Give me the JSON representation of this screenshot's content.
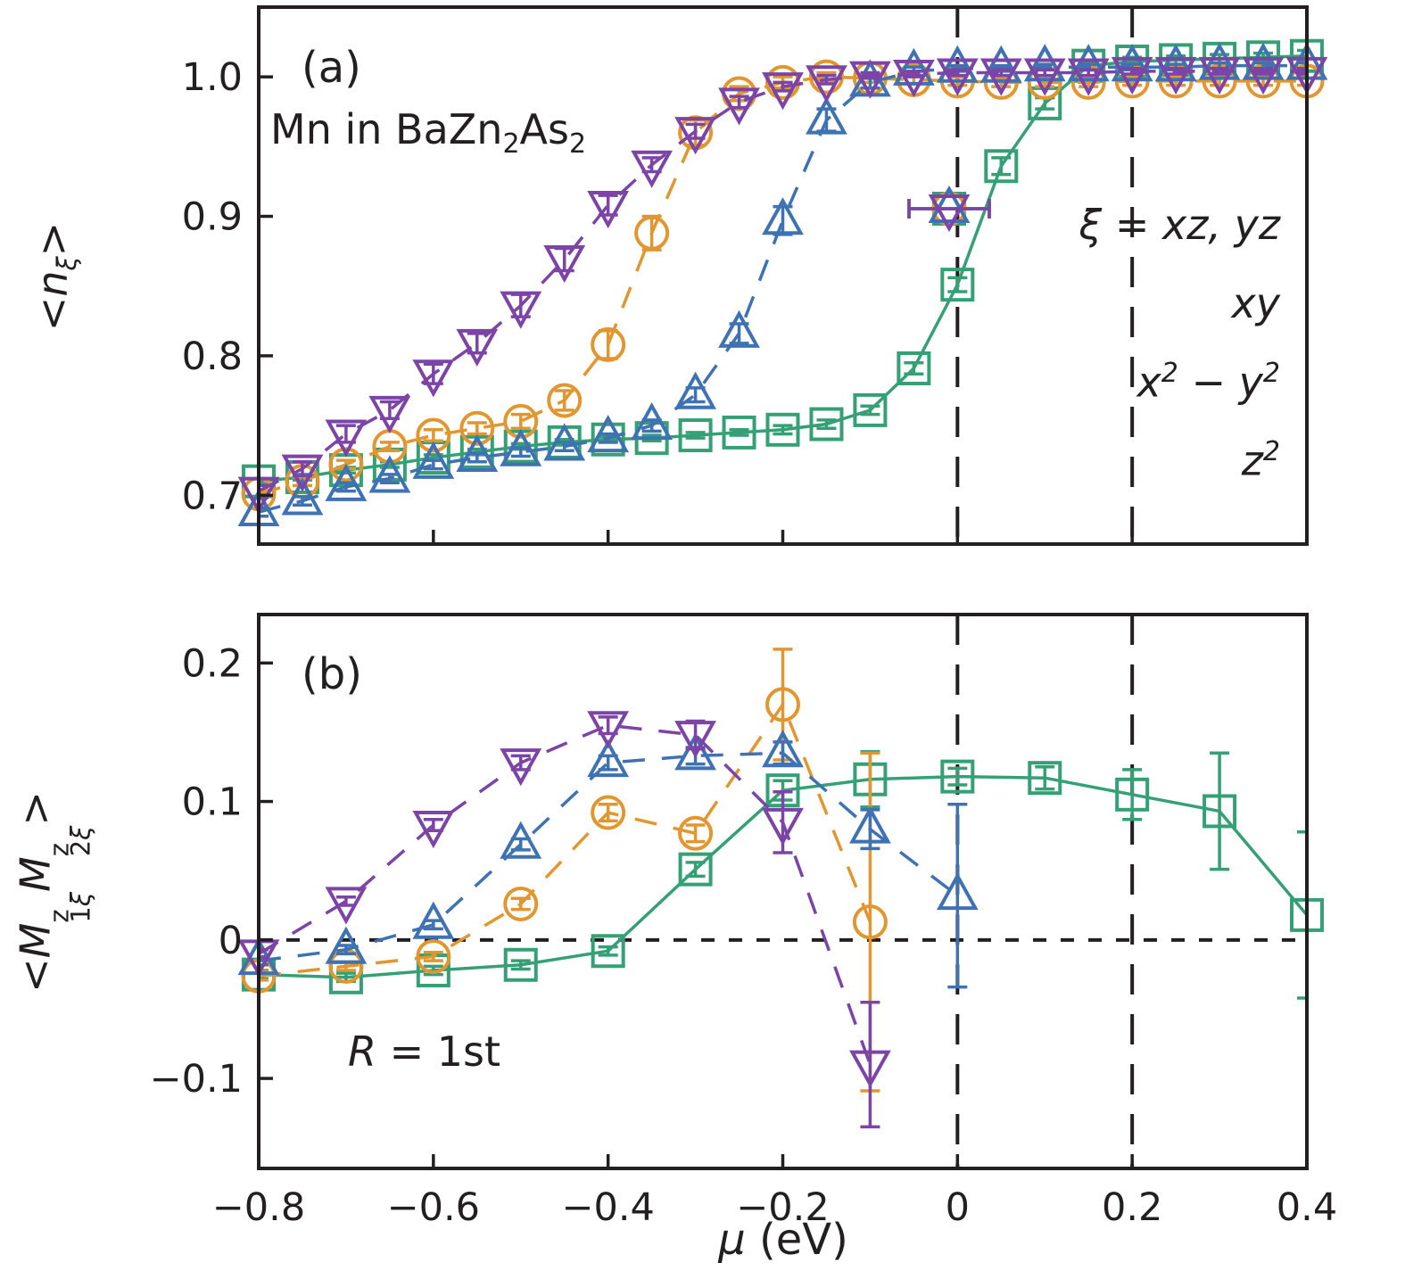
{
  "figure": {
    "panel_a_label": "(a)",
    "panel_a_annotation_html": "Mn in BaZn<sub>2</sub>As<sub>2</sub>",
    "panel_b_label": "(b)",
    "panel_b_annotation_html": "<i>R</i> = 1st",
    "xlabel_html": "<i>μ</i> (eV)",
    "ylabel_a_html": "&lt;<i>n</i><sub><i>ξ</i></sub>&gt;",
    "ylabel_b_html": "&lt;<i>M</i><span class=\"ss\"><span class=\"sup\">z</span><span class=\"sub\">1<i>ξ</i></span></span><i>M</i><span class=\"ss\"><span class=\"sup\">z</span><span class=\"sub\">2<i>ξ</i></span></span>&gt;"
  },
  "legend": {
    "items": [
      {
        "name": "xz_yz",
        "label_html": "<i>ξ</i> = <i>xz</i>, <i>yz</i>"
      },
      {
        "name": "xy",
        "label_html": "<i>xy</i>"
      },
      {
        "name": "x2_y2",
        "label_html": "<i>x</i><sup>2</sup> − <i>y</i><sup>2</sup>"
      },
      {
        "name": "z2",
        "label_html": "<i>z</i><sup>2</sup>"
      }
    ]
  },
  "colors": {
    "green": "#35a075",
    "orange": "#e2962f",
    "blue": "#3e72b2",
    "purple": "#7b44a6",
    "frame": "#231f20"
  },
  "chart_data": [
    {
      "panel": "a",
      "type": "line",
      "title": "",
      "xlabel": "",
      "ylabel": "<n_xi>",
      "xlim": [
        -0.8,
        0.4
      ],
      "ylim": [
        0.665,
        1.05
      ],
      "yticks": [
        0.7,
        0.8,
        0.9,
        1.0
      ],
      "yticklabels": [
        "0.7",
        "0.8",
        "0.9",
        "1.0"
      ],
      "xticks": [
        -0.8,
        -0.6,
        -0.4,
        -0.2,
        0,
        0.2,
        0.4
      ],
      "xticklabels": [],
      "vlines": [
        0,
        0.2
      ],
      "hline": null,
      "grid": false,
      "x": [
        -0.8,
        -0.75,
        -0.7,
        -0.65,
        -0.6,
        -0.55,
        -0.5,
        -0.45,
        -0.4,
        -0.35,
        -0.3,
        -0.25,
        -0.2,
        -0.15,
        -0.1,
        -0.05,
        0.0,
        0.05,
        0.1,
        0.15,
        0.2,
        0.25,
        0.3,
        0.35,
        0.4
      ],
      "series": [
        {
          "name": "xz_yz",
          "color": "green",
          "marker": "square",
          "line": "solid",
          "values": [
            0.71,
            0.713,
            0.718,
            0.722,
            0.727,
            0.731,
            0.735,
            0.738,
            0.74,
            0.741,
            0.743,
            0.745,
            0.747,
            0.751,
            0.761,
            0.791,
            0.851,
            0.936,
            0.981,
            1.008,
            1.011,
            1.012,
            1.013,
            1.014,
            1.015
          ],
          "err": [
            0.002,
            0.002,
            0.002,
            0.002,
            0.002,
            0.002,
            0.002,
            0.002,
            0.002,
            0.002,
            0.002,
            0.002,
            0.003,
            0.003,
            0.003,
            0.004,
            0.005,
            0.006,
            0.004,
            0.003,
            0.003,
            0.003,
            0.003,
            0.003,
            0.004
          ]
        },
        {
          "name": "xy",
          "color": "orange",
          "marker": "circle",
          "line": "dashed",
          "values": [
            0.701,
            0.71,
            0.722,
            0.735,
            0.743,
            0.748,
            0.753,
            0.768,
            0.808,
            0.888,
            0.96,
            0.988,
            0.996,
            1.0,
            0.999,
            0.998,
            0.997,
            0.996,
            0.996,
            0.996,
            0.997,
            0.997,
            0.997,
            0.997,
            0.997
          ],
          "err": [
            0.003,
            0.003,
            0.003,
            0.003,
            0.004,
            0.004,
            0.005,
            0.007,
            0.01,
            0.012,
            0.009,
            0.005,
            0.004,
            0.003,
            0.003,
            0.003,
            0.003,
            0.003,
            0.003,
            0.003,
            0.003,
            0.003,
            0.003,
            0.003,
            0.003
          ]
        },
        {
          "name": "x2_y2",
          "color": "blue",
          "marker": "triangle-up",
          "line": "dashed",
          "values": [
            0.688,
            0.696,
            0.706,
            0.712,
            0.722,
            0.727,
            0.731,
            0.735,
            0.741,
            0.75,
            0.772,
            0.816,
            0.897,
            0.969,
            0.996,
            1.004,
            1.006,
            1.006,
            1.007,
            1.007,
            1.007,
            1.007,
            1.008,
            1.008,
            1.008
          ],
          "err": [
            0.003,
            0.003,
            0.003,
            0.003,
            0.003,
            0.003,
            0.003,
            0.003,
            0.003,
            0.004,
            0.005,
            0.007,
            0.01,
            0.008,
            0.004,
            0.003,
            0.002,
            0.002,
            0.002,
            0.002,
            0.002,
            0.002,
            0.002,
            0.002,
            0.002
          ]
        },
        {
          "name": "z2",
          "color": "purple",
          "marker": "triangle-down",
          "line": "dashed",
          "values": [
            0.703,
            0.719,
            0.744,
            0.761,
            0.787,
            0.809,
            0.836,
            0.869,
            0.908,
            0.937,
            0.961,
            0.982,
            0.993,
            0.998,
            1.001,
            1.002,
            1.003,
            1.003,
            1.003,
            1.003,
            1.004,
            1.004,
            1.004,
            1.004,
            1.004
          ],
          "err": [
            0.004,
            0.005,
            0.006,
            0.006,
            0.007,
            0.007,
            0.008,
            0.008,
            0.007,
            0.005,
            0.005,
            0.004,
            0.003,
            0.003,
            0.002,
            0.002,
            0.002,
            0.002,
            0.002,
            0.002,
            0.002,
            0.002,
            0.002,
            0.002,
            0.002
          ]
        }
      ]
    },
    {
      "panel": "b",
      "type": "line",
      "title": "",
      "xlabel": "mu (eV)",
      "ylabel": "<M^z_1xi M^z_2xi>",
      "xlim": [
        -0.8,
        0.4
      ],
      "ylim": [
        -0.165,
        0.235
      ],
      "yticks": [
        -0.1,
        0,
        0.1,
        0.2
      ],
      "yticklabels": [
        "−0.1",
        "0",
        "0.1",
        "0.2"
      ],
      "xticks": [
        -0.8,
        -0.6,
        -0.4,
        -0.2,
        0,
        0.2,
        0.4
      ],
      "xticklabels": [
        "−0.8",
        "−0.6",
        "−0.4",
        "−0.2",
        "0",
        "0.2",
        "0.4"
      ],
      "vlines": [
        0,
        0.2
      ],
      "hline": 0,
      "grid": false,
      "x": [
        -0.8,
        -0.7,
        -0.6,
        -0.5,
        -0.4,
        -0.3,
        -0.2,
        -0.1,
        0.0,
        0.1,
        0.2,
        0.3,
        0.4
      ],
      "series": [
        {
          "name": "xz_yz",
          "color": "green",
          "marker": "square",
          "line": "solid",
          "values": [
            -0.025,
            -0.027,
            -0.022,
            -0.018,
            -0.008,
            0.051,
            0.108,
            0.116,
            0.118,
            0.117,
            0.105,
            0.093,
            0.018
          ],
          "err": [
            0.003,
            0.003,
            0.003,
            0.003,
            0.003,
            0.005,
            0.007,
            0.02,
            0.006,
            0.008,
            0.018,
            0.042,
            0.06
          ]
        },
        {
          "name": "xy",
          "color": "orange",
          "marker": "circle",
          "line": "dashed",
          "values": [
            -0.026,
            -0.019,
            -0.012,
            0.026,
            0.092,
            0.077,
            0.17,
            0.013
          ],
          "err": [
            0.003,
            0.003,
            0.003,
            0.004,
            0.006,
            0.006,
            0.04,
            0.122
          ]
        },
        {
          "name": "x2_y2",
          "color": "blue",
          "marker": "triangle-up",
          "line": "dashed",
          "values": [
            -0.015,
            -0.007,
            0.011,
            0.069,
            0.128,
            0.133,
            0.135,
            0.08,
            0.032
          ],
          "err": [
            0.003,
            0.003,
            0.003,
            0.004,
            0.005,
            0.006,
            0.008,
            0.014,
            0.066
          ]
        },
        {
          "name": "z2",
          "color": "purple",
          "marker": "triangle-down",
          "line": "dashed",
          "values": [
            -0.01,
            0.028,
            0.083,
            0.128,
            0.155,
            0.148,
            0.085,
            -0.09
          ],
          "err": [
            0.003,
            0.003,
            0.004,
            0.005,
            0.006,
            0.01,
            0.022,
            0.045
          ]
        }
      ]
    }
  ]
}
